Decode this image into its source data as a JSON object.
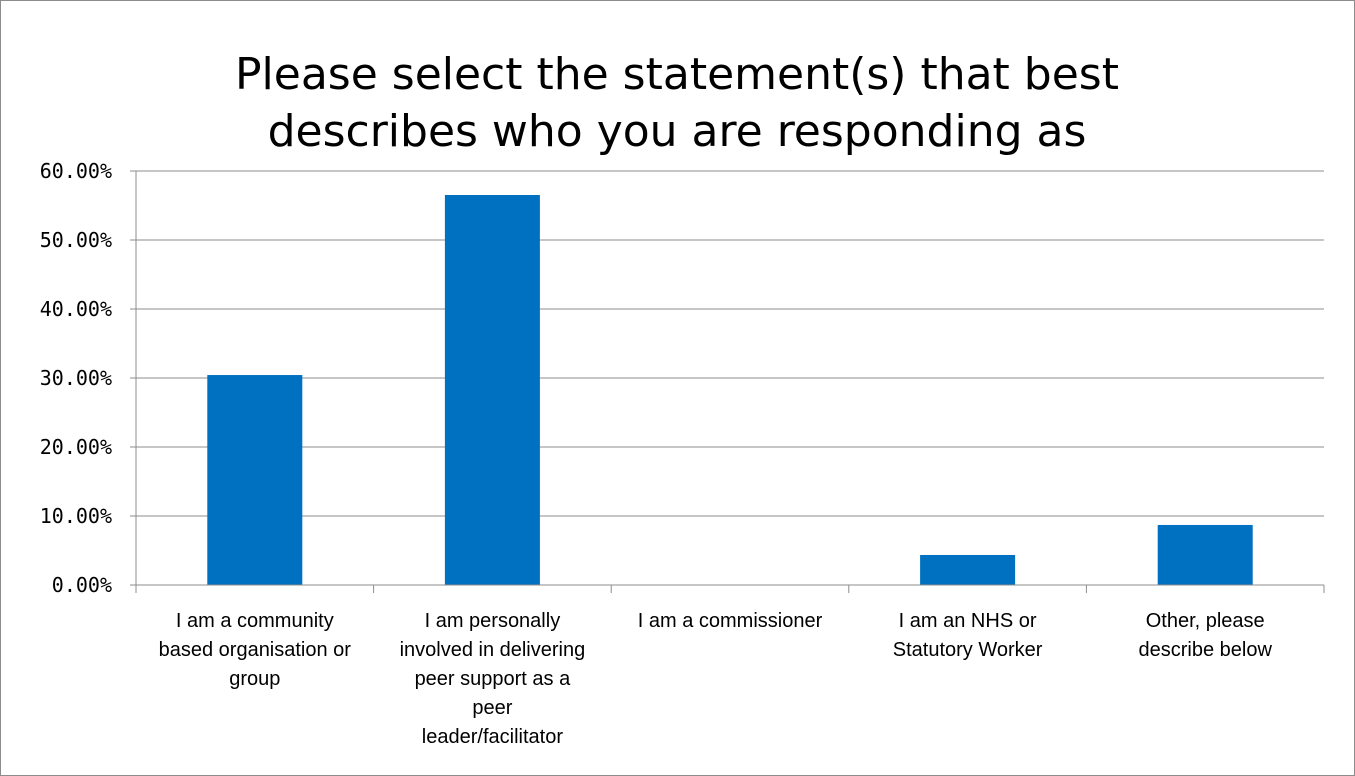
{
  "chart_data": {
    "type": "bar",
    "title": "Please select the statement(s) that best describes who you are responding as",
    "title_lines": [
      "Please select the statement(s) that best",
      "describes who you are responding as"
    ],
    "categories": [
      "I am a community based organisation or group",
      "I am personally involved in delivering peer support as a peer leader/facilitator",
      "I am a commissioner",
      "I am an NHS or Statutory Worker",
      "Other, please describe below"
    ],
    "category_label_lines": [
      [
        "I am a community",
        "based organisation or",
        "group"
      ],
      [
        "I am personally",
        "involved in delivering",
        "peer support as a",
        "peer",
        "leader/facilitator"
      ],
      [
        "I am a commissioner"
      ],
      [
        "I am an NHS or",
        "Statutory Worker"
      ],
      [
        "Other, please",
        "describe below"
      ]
    ],
    "values": [
      30.43,
      56.52,
      0.0,
      4.35,
      8.7
    ],
    "ylim": [
      0,
      60
    ],
    "yticks": [
      0,
      10,
      20,
      30,
      40,
      50,
      60
    ],
    "ytick_labels": [
      "0.00%",
      "10.00%",
      "20.00%",
      "30.00%",
      "40.00%",
      "50.00%",
      "60.00%"
    ],
    "xlabel": "",
    "ylabel": "",
    "grid": "horizontal",
    "legend": "none",
    "bar_color": "#0070c0",
    "grid_color": "#8c8c8c",
    "axis_color": "#8c8c8c"
  }
}
